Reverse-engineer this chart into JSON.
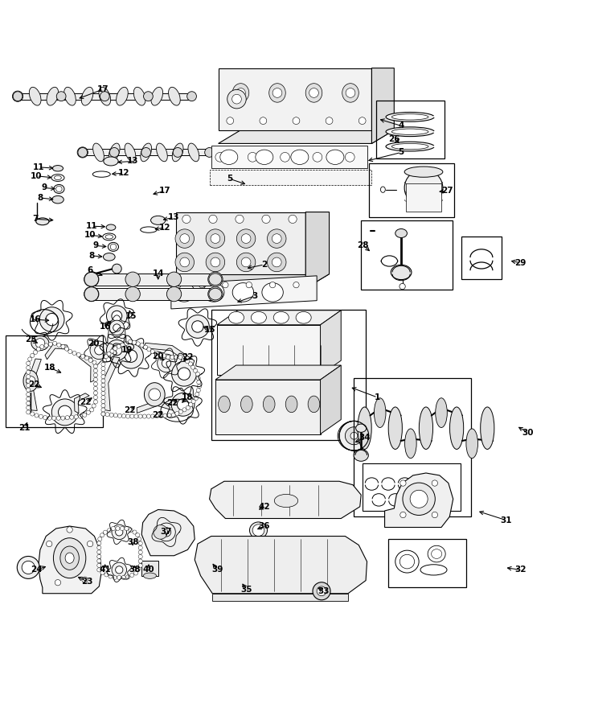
{
  "bg_color": "#ffffff",
  "line_color": "#000000",
  "figsize": [
    7.34,
    9.0
  ],
  "dpi": 100,
  "labels": [
    [
      17,
      0.175,
      0.962,
      0.13,
      0.945
    ],
    [
      4,
      0.68,
      0.9,
      0.64,
      0.912
    ],
    [
      5,
      0.68,
      0.855,
      0.62,
      0.84
    ],
    [
      5,
      0.39,
      0.81,
      0.42,
      0.8
    ],
    [
      11,
      0.065,
      0.83,
      0.095,
      0.828
    ],
    [
      13,
      0.225,
      0.84,
      0.195,
      0.838
    ],
    [
      10,
      0.062,
      0.815,
      0.092,
      0.812
    ],
    [
      12,
      0.21,
      0.82,
      0.185,
      0.818
    ],
    [
      9,
      0.075,
      0.795,
      0.098,
      0.793
    ],
    [
      8,
      0.068,
      0.778,
      0.095,
      0.775
    ],
    [
      17,
      0.28,
      0.79,
      0.255,
      0.783
    ],
    [
      7,
      0.06,
      0.742,
      0.095,
      0.74
    ],
    [
      11,
      0.155,
      0.73,
      0.183,
      0.729
    ],
    [
      13,
      0.295,
      0.745,
      0.272,
      0.74
    ],
    [
      10,
      0.152,
      0.715,
      0.178,
      0.712
    ],
    [
      12,
      0.28,
      0.728,
      0.258,
      0.724
    ],
    [
      9,
      0.162,
      0.697,
      0.185,
      0.695
    ],
    [
      8,
      0.155,
      0.68,
      0.178,
      0.678
    ],
    [
      6,
      0.152,
      0.655,
      0.178,
      0.645
    ],
    [
      14,
      0.268,
      0.65,
      0.268,
      0.635
    ],
    [
      15,
      0.222,
      0.578,
      0.218,
      0.592
    ],
    [
      16,
      0.06,
      0.572,
      0.088,
      0.57
    ],
    [
      16,
      0.178,
      0.56,
      0.192,
      0.572
    ],
    [
      15,
      0.355,
      0.555,
      0.34,
      0.562
    ],
    [
      25,
      0.052,
      0.538,
      0.068,
      0.53
    ],
    [
      20,
      0.158,
      0.532,
      0.165,
      0.525
    ],
    [
      20,
      0.268,
      0.51,
      0.282,
      0.5
    ],
    [
      22,
      0.318,
      0.508,
      0.308,
      0.498
    ],
    [
      19,
      0.215,
      0.52,
      0.222,
      0.51
    ],
    [
      22,
      0.058,
      0.462,
      0.075,
      0.455
    ],
    [
      22,
      0.145,
      0.432,
      0.16,
      0.442
    ],
    [
      22,
      0.22,
      0.418,
      0.232,
      0.428
    ],
    [
      22,
      0.268,
      0.41,
      0.278,
      0.42
    ],
    [
      22,
      0.292,
      0.43,
      0.302,
      0.44
    ],
    [
      18,
      0.085,
      0.49,
      0.108,
      0.48
    ],
    [
      18,
      0.318,
      0.44,
      0.305,
      0.428
    ],
    [
      21,
      0.042,
      0.388,
      0.048,
      0.402
    ],
    [
      1,
      0.64,
      0.44,
      0.592,
      0.458
    ],
    [
      34,
      0.618,
      0.372,
      0.598,
      0.362
    ],
    [
      2,
      0.448,
      0.665,
      0.415,
      0.658
    ],
    [
      3,
      0.432,
      0.612,
      0.398,
      0.6
    ],
    [
      26,
      0.668,
      0.878,
      0.68,
      0.868
    ],
    [
      27,
      0.758,
      0.79,
      0.74,
      0.788
    ],
    [
      28,
      0.615,
      0.698,
      0.63,
      0.685
    ],
    [
      29,
      0.882,
      0.668,
      0.862,
      0.672
    ],
    [
      30,
      0.895,
      0.38,
      0.875,
      0.392
    ],
    [
      31,
      0.858,
      0.232,
      0.808,
      0.248
    ],
    [
      32,
      0.882,
      0.148,
      0.855,
      0.152
    ],
    [
      24,
      0.062,
      0.148,
      0.082,
      0.155
    ],
    [
      23,
      0.148,
      0.128,
      0.128,
      0.138
    ],
    [
      41,
      0.178,
      0.148,
      0.178,
      0.162
    ],
    [
      38,
      0.225,
      0.195,
      0.225,
      0.185
    ],
    [
      38,
      0.228,
      0.148,
      0.228,
      0.16
    ],
    [
      37,
      0.282,
      0.212,
      0.282,
      0.202
    ],
    [
      36,
      0.448,
      0.222,
      0.432,
      0.215
    ],
    [
      39,
      0.368,
      0.148,
      0.358,
      0.162
    ],
    [
      40,
      0.252,
      0.148,
      0.252,
      0.162
    ],
    [
      42,
      0.448,
      0.255,
      0.435,
      0.248
    ],
    [
      35,
      0.418,
      0.115,
      0.408,
      0.128
    ],
    [
      33,
      0.548,
      0.112,
      0.535,
      0.12
    ]
  ]
}
